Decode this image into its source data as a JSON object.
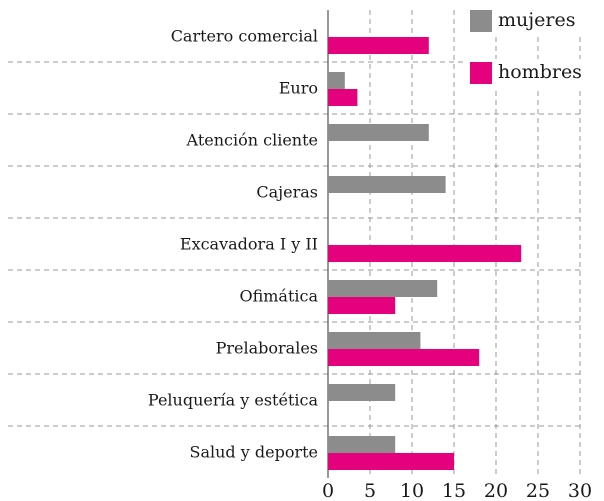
{
  "chart_data": {
    "type": "bar",
    "orientation": "horizontal",
    "categories": [
      "Cartero comercial",
      "Euro",
      "Atención cliente",
      "Cajeras",
      "Excavadora I y II",
      "Ofimática",
      "Prelaborales",
      "Peluquería y estética",
      "Salud y deporte"
    ],
    "series": [
      {
        "name": "mujeres",
        "color": "#8c8c8c",
        "values": [
          null,
          2,
          12,
          14,
          null,
          13,
          11,
          8,
          8
        ]
      },
      {
        "name": "hombres",
        "color": "#e5007e",
        "values": [
          12,
          3.5,
          null,
          null,
          23,
          8,
          18,
          null,
          15
        ]
      }
    ],
    "xlim": [
      0,
      30
    ],
    "xticks": [
      0,
      5,
      10,
      15,
      20,
      25,
      30
    ],
    "grid": true,
    "legend": "top-right"
  }
}
